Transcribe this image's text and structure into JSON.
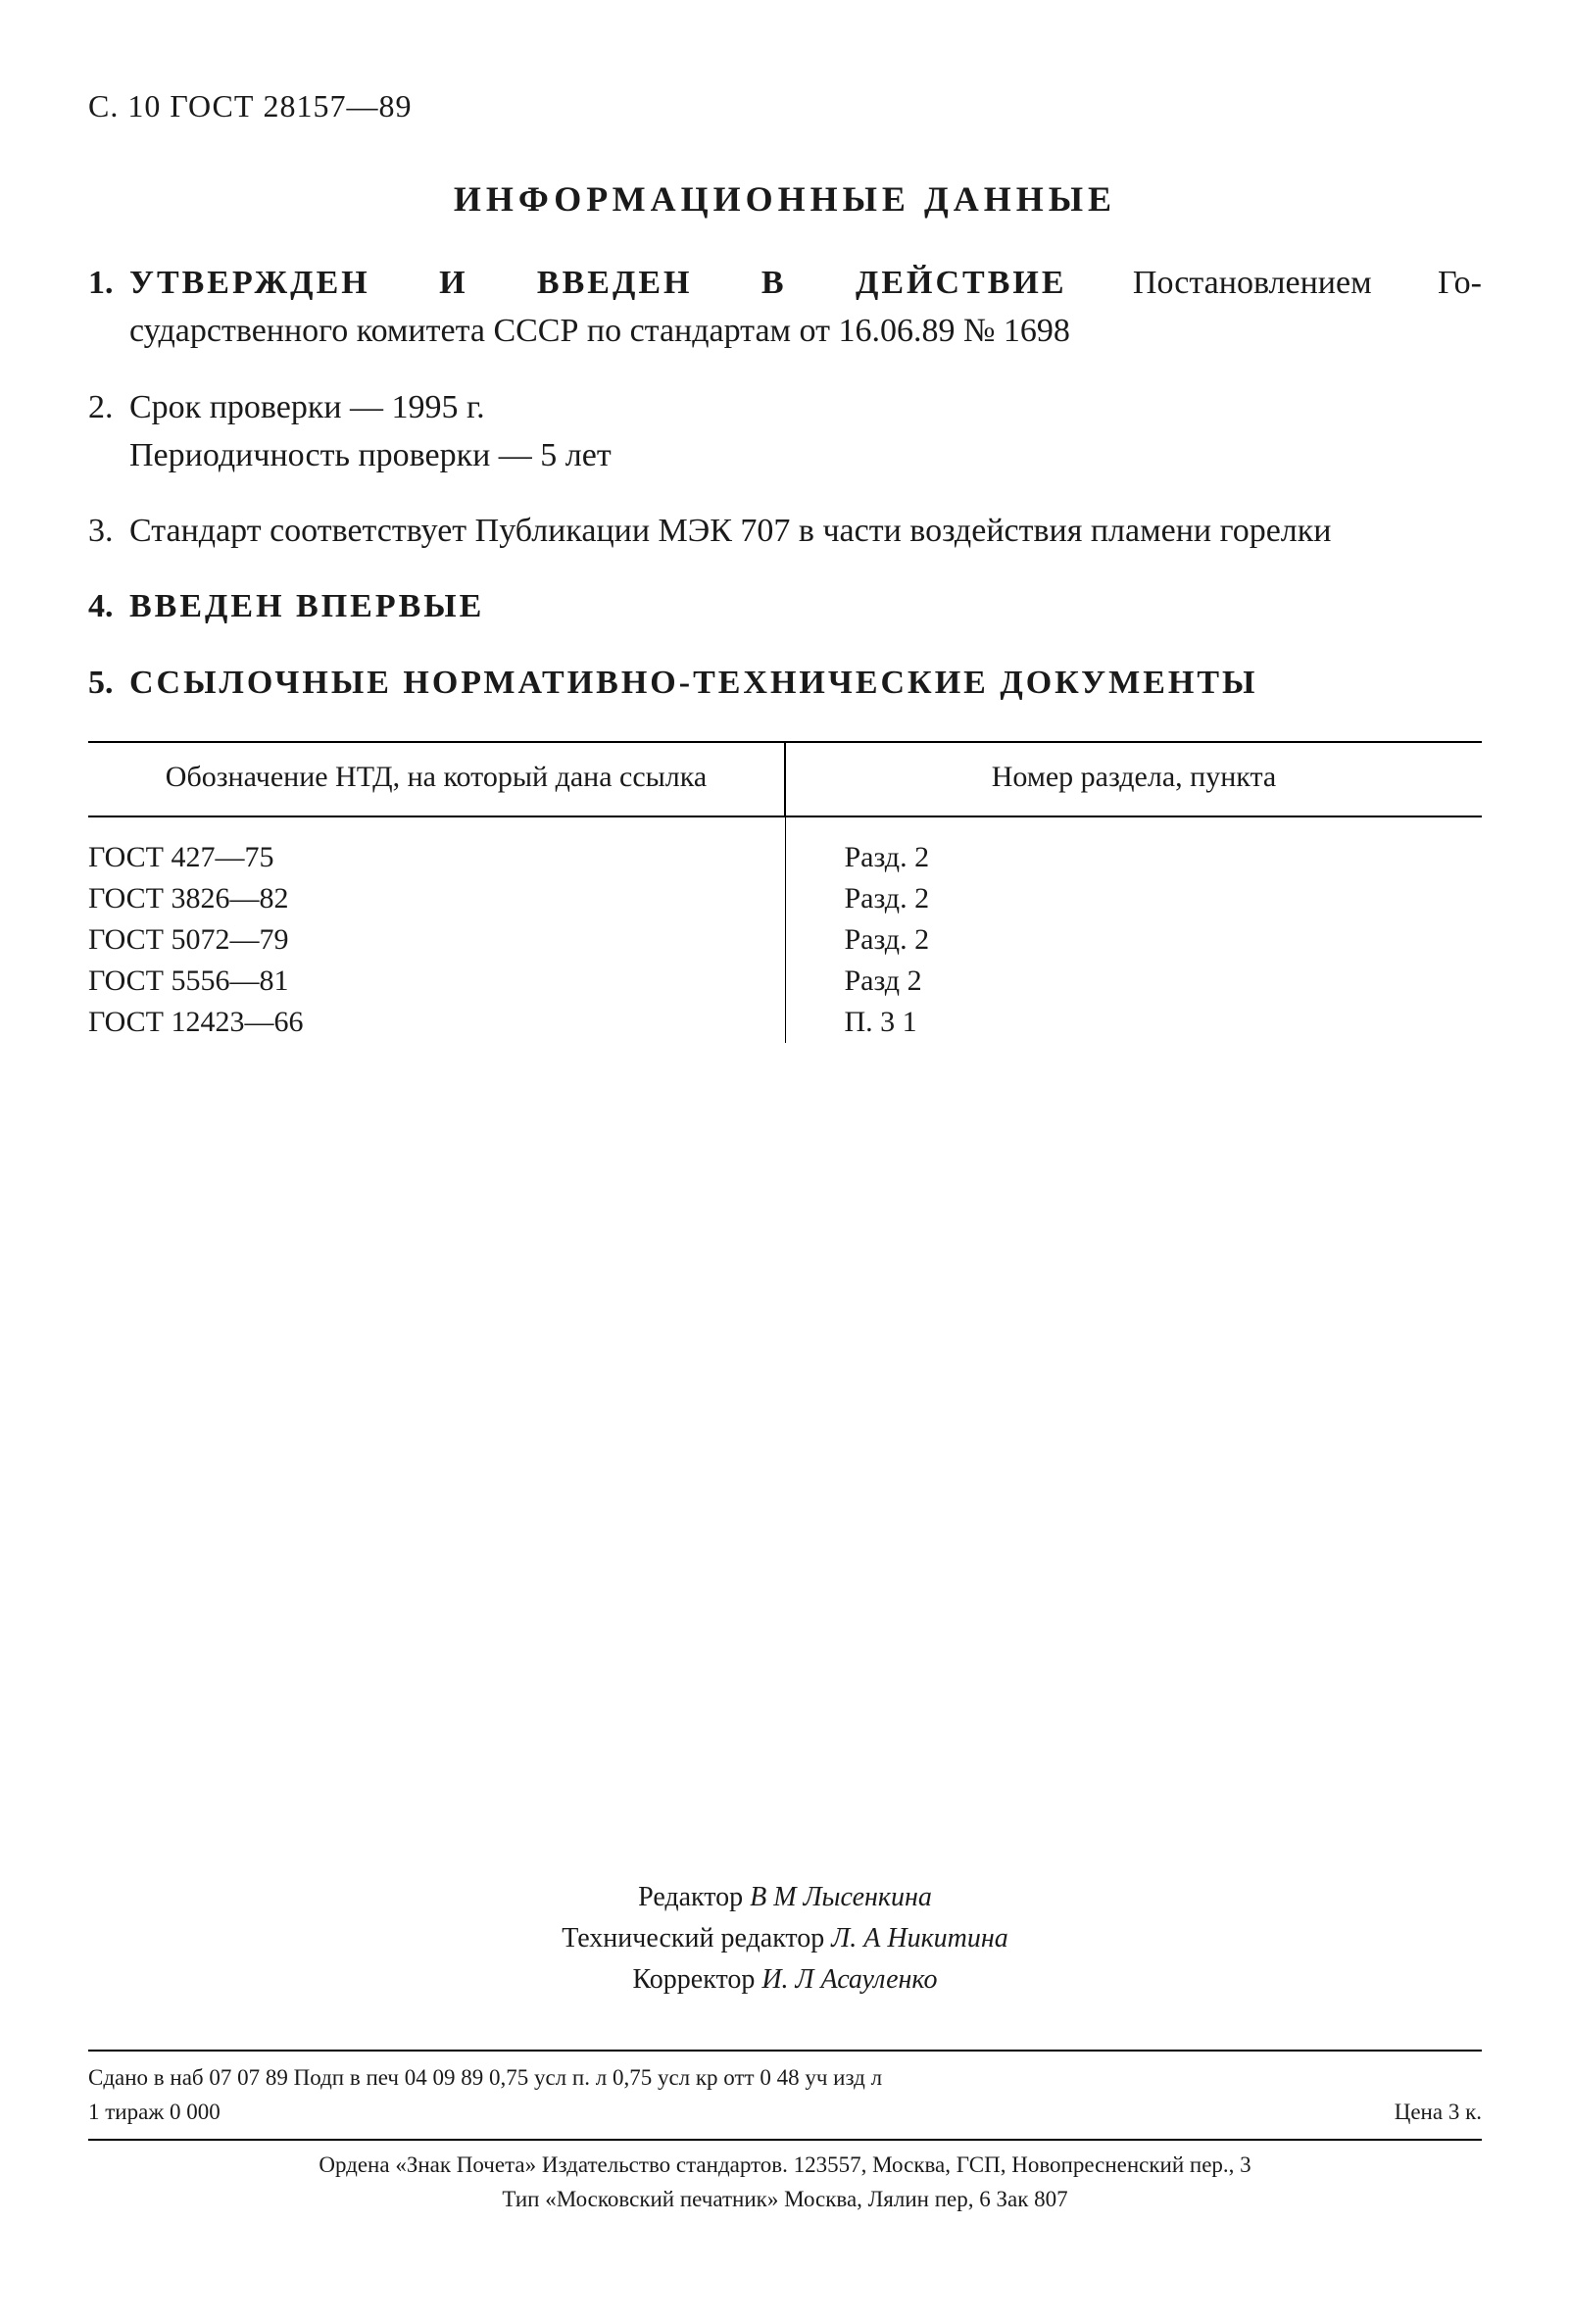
{
  "page_header": "С. 10 ГОСТ 28157—89",
  "title": "ИНФОРМАЦИОННЫЕ ДАННЫЕ",
  "items": {
    "n1": "1.",
    "i1_lead": "УТВЕРЖДЕН И ВВЕДЕН В ДЕЙСТВИЕ",
    "i1_rest1": " Постановлением Го-",
    "i1_rest2": "сударственного комитета СССР по стандартам от 16.06.89 № 1698",
    "n2": "2.",
    "i2a": "Срок проверки — 1995 г.",
    "i2b": "Периодичность проверки — 5 лет",
    "n3": "3.",
    "i3": "Стандарт соответствует Публикации МЭК 707 в части воздействия пламени горелки",
    "n4": "4.",
    "i4": "ВВЕДЕН ВПЕРВЫЕ",
    "n5": "5.",
    "i5": "ССЫЛОЧНЫЕ НОРМАТИВНО-ТЕХНИЧЕСКИЕ ДОКУМЕНТЫ"
  },
  "table": {
    "head1": "Обозначение НТД, на который дана ссылка",
    "head2": "Номер раздела, пункта",
    "rows": [
      {
        "c1": "ГОСТ 427—75",
        "c2": "Разд. 2"
      },
      {
        "c1": "ГОСТ 3826—82",
        "c2": "Разд. 2"
      },
      {
        "c1": "ГОСТ 5072—79",
        "c2": "Разд. 2"
      },
      {
        "c1": "ГОСТ 5556—81",
        "c2": "Разд  2"
      },
      {
        "c1": "ГОСТ 12423—66",
        "c2": "П. 3 1"
      }
    ]
  },
  "editors": {
    "l1_role": "Редактор ",
    "l1_name": "В М Лысенкина",
    "l2_role": "Технический редактор ",
    "l2_name": "Л. А Никитина",
    "l3_role": "Корректор ",
    "l3_name": "И. Л Асауленко"
  },
  "printline": {
    "left_l1": "Сдано в наб 07 07 89 Подп в печ 04 09 89 0,75 усл п. л 0,75 усл кр отт 0 48 уч изд л",
    "left_l2": "1 тираж 0 000",
    "right": "Цена 3 к."
  },
  "publisher": {
    "l1": "Ордена «Знак Почета» Издательство стандартов. 123557, Москва, ГСП, Новопресненский пер., 3",
    "l2": "Тип «Московский печатник» Москва, Лялин пер, 6 Зак 807"
  }
}
